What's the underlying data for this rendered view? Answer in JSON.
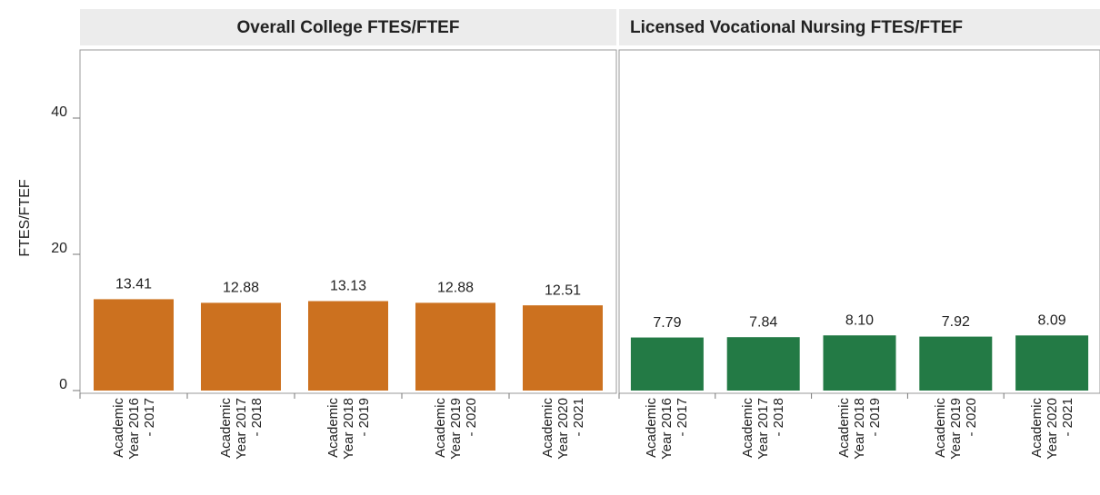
{
  "chart_data": [
    {
      "type": "bar",
      "title": "Overall College FTES/FTEF",
      "y_label": "FTES/FTEF",
      "categories": [
        "Academic Year 2016 - 2017",
        "Academic Year 2017 - 2018",
        "Academic Year 2018 - 2019",
        "Academic Year 2019 - 2020",
        "Academic Year 2020 - 2021"
      ],
      "values": [
        13.41,
        12.88,
        13.13,
        12.88,
        12.51
      ],
      "value_labels": [
        "13.41",
        "12.88",
        "13.13",
        "12.88",
        "12.51"
      ],
      "color": "#cc711f",
      "ylim": [
        0,
        50
      ],
      "yticks": [
        0,
        20,
        40
      ]
    },
    {
      "type": "bar",
      "title": "Licensed Vocational Nursing FTES/FTEF",
      "categories": [
        "Academic Year 2016 - 2017",
        "Academic Year 2017 - 2018",
        "Academic Year 2018 - 2019",
        "Academic Year 2019 - 2020",
        "Academic Year 2020 - 2021"
      ],
      "values": [
        7.79,
        7.84,
        8.1,
        7.92,
        8.09
      ],
      "value_labels": [
        "7.79",
        "7.84",
        "8.10",
        "7.92",
        "8.09"
      ],
      "color": "#237a45",
      "ylim": [
        0,
        50
      ]
    }
  ]
}
